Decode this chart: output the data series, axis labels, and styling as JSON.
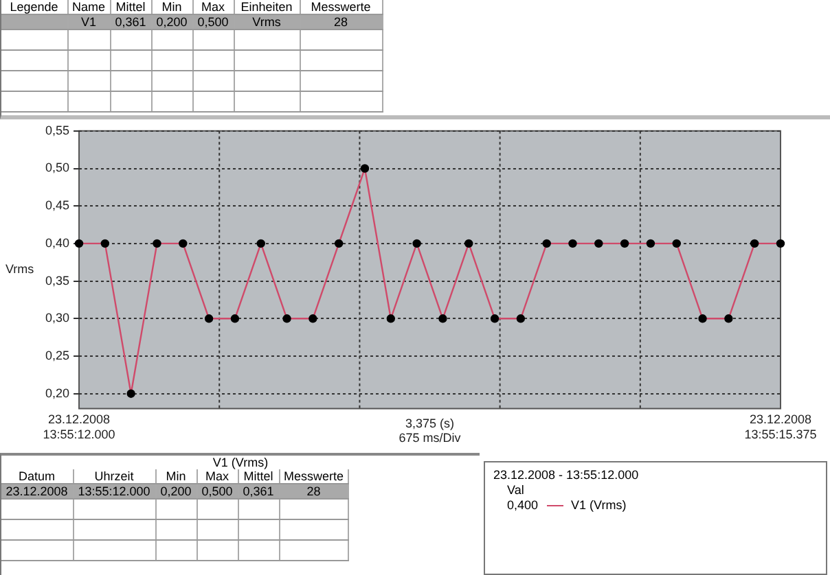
{
  "chart_data": {
    "type": "line",
    "xlabel": "3,375 (s)\n675 ms/Div",
    "ylabel": "Vrms",
    "categories": [
      "23.12.2008\n13:55:12.000",
      null,
      null,
      null,
      null,
      null,
      null,
      null,
      null,
      null,
      null,
      null,
      null,
      null,
      null,
      null,
      null,
      null,
      null,
      null,
      null,
      null,
      null,
      null,
      null,
      null,
      null,
      "23.12.2008\n13:55:15.375"
    ],
    "series": [
      {
        "color": "#d04a6a",
        "values": [
          0.4,
          0.4,
          0.2,
          0.4,
          0.4,
          0.3,
          0.3,
          0.4,
          0.3,
          0.3,
          0.4,
          0.5,
          0.3,
          0.4,
          0.3,
          0.4,
          0.3,
          0.3,
          0.4,
          0.4,
          0.4,
          0.4,
          0.4,
          0.4,
          0.3,
          0.3,
          0.4,
          0.4
        ]
      }
    ],
    "ylim": [
      0.18,
      0.55
    ],
    "yticks": [
      {
        "value": 0.2,
        "label": "0,20"
      },
      {
        "value": 0.25,
        "label": "0,25"
      },
      {
        "value": 0.3,
        "label": "0,30"
      },
      {
        "value": 0.35,
        "label": "0,35"
      },
      {
        "value": 0.4,
        "label": "0,40"
      },
      {
        "value": 0.45,
        "label": "0,45"
      },
      {
        "value": 0.5,
        "label": "0,50"
      },
      {
        "value": 0.55,
        "label": "0,55"
      }
    ],
    "grid": true,
    "marker": "circle",
    "line_style": "solid",
    "annotations": [
      "Legende",
      "Name",
      "Mittel",
      "Min",
      "Max",
      "Einheiten",
      "Messwerte",
      "V1",
      "0,361",
      "0,200",
      "0,500",
      "Vrms",
      "28",
      "V1 (Vrms)",
      "Datum",
      "Uhrzeit",
      "Min",
      "Max",
      "Mittel",
      "Messwerte",
      "23.12.2008",
      "13:55:12.000",
      "0,200",
      "0,500",
      "0,361",
      "28",
      "23.12.2008 - 13:55:12.000",
      "Val",
      "0,400",
      "V1 (Vrms)"
    ]
  }
}
